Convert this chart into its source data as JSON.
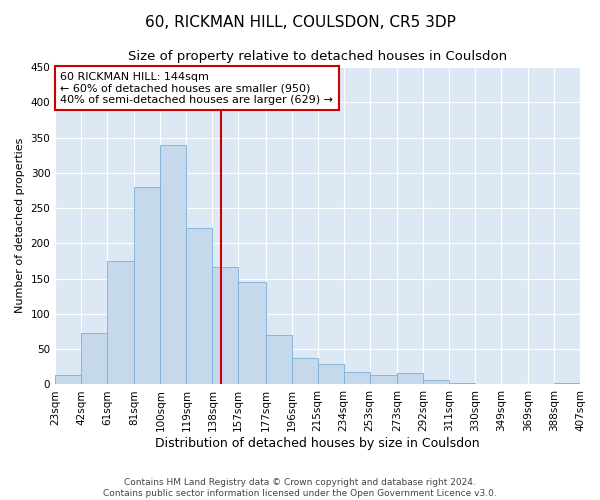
{
  "title": "60, RICKMAN HILL, COULSDON, CR5 3DP",
  "subtitle": "Size of property relative to detached houses in Coulsdon",
  "xlabel": "Distribution of detached houses by size in Coulsdon",
  "ylabel": "Number of detached properties",
  "bin_labels": [
    "23sqm",
    "42sqm",
    "61sqm",
    "81sqm",
    "100sqm",
    "119sqm",
    "138sqm",
    "157sqm",
    "177sqm",
    "196sqm",
    "215sqm",
    "234sqm",
    "253sqm",
    "273sqm",
    "292sqm",
    "311sqm",
    "330sqm",
    "349sqm",
    "369sqm",
    "388sqm",
    "407sqm"
  ],
  "bin_edges": [
    23,
    42,
    61,
    81,
    100,
    119,
    138,
    157,
    177,
    196,
    215,
    234,
    253,
    273,
    292,
    311,
    330,
    349,
    369,
    388,
    407
  ],
  "bar_heights": [
    13,
    73,
    175,
    280,
    340,
    222,
    167,
    145,
    70,
    38,
    29,
    18,
    13,
    16,
    7,
    2,
    0,
    0,
    0,
    2
  ],
  "bar_color": "#c6d9ec",
  "bar_edge_color": "#7bafd4",
  "vline_x": 144,
  "vline_color": "#cc0000",
  "ylim": [
    0,
    450
  ],
  "yticks": [
    0,
    50,
    100,
    150,
    200,
    250,
    300,
    350,
    400,
    450
  ],
  "annotation_title": "60 RICKMAN HILL: 144sqm",
  "annotation_line1": "← 60% of detached houses are smaller (950)",
  "annotation_line2": "40% of semi-detached houses are larger (629) →",
  "footer1": "Contains HM Land Registry data © Crown copyright and database right 2024.",
  "footer2": "Contains public sector information licensed under the Open Government Licence v3.0.",
  "bg_color": "#dde8f5",
  "title_fontsize": 11,
  "subtitle_fontsize": 9.5,
  "ylabel_fontsize": 8,
  "xlabel_fontsize": 9,
  "tick_fontsize": 7.5,
  "footer_fontsize": 6.5,
  "annot_fontsize": 8
}
